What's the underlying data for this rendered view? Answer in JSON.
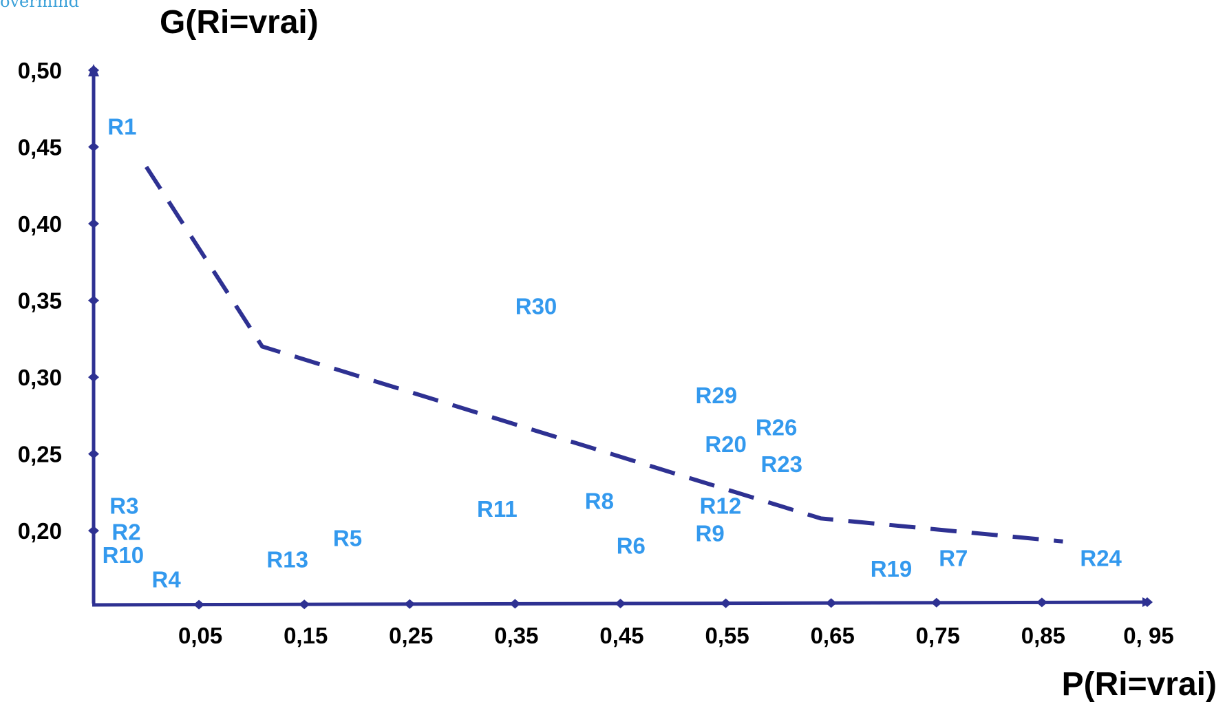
{
  "watermark": "overmind",
  "colors": {
    "axis": "#2e3192",
    "labels": "#3399ee",
    "frontier": "#2e3192"
  },
  "chart_data": {
    "type": "scatter",
    "title": "",
    "xlabel": "P(Ri=vrai)",
    "ylabel": "G(Ri=vrai)",
    "x_ticks": [
      "0,05",
      "0,15",
      "0,25",
      "0,35",
      "0,45",
      "0,55",
      "0,65",
      "0,75",
      "0,85",
      "0, 95"
    ],
    "x_tick_values": [
      0.05,
      0.15,
      0.25,
      0.35,
      0.45,
      0.55,
      0.65,
      0.75,
      0.85,
      0.95
    ],
    "y_ticks": [
      "0,50",
      "0,45",
      "0,40",
      "0,35",
      "0,30",
      "0,25",
      "0,20"
    ],
    "y_tick_values": [
      0.5,
      0.45,
      0.4,
      0.35,
      0.3,
      0.25,
      0.2
    ],
    "xlim": [
      -0.05,
      0.95
    ],
    "ylim": [
      0.153,
      0.5
    ],
    "points": [
      {
        "label": "R1",
        "x": -0.023,
        "y": 0.462
      },
      {
        "label": "R30",
        "x": 0.37,
        "y": 0.345
      },
      {
        "label": "R29",
        "x": 0.541,
        "y": 0.287
      },
      {
        "label": "R26",
        "x": 0.598,
        "y": 0.266
      },
      {
        "label": "R20",
        "x": 0.55,
        "y": 0.255
      },
      {
        "label": "R23",
        "x": 0.603,
        "y": 0.242
      },
      {
        "label": "R3",
        "x": -0.021,
        "y": 0.215
      },
      {
        "label": "R2",
        "x": -0.019,
        "y": 0.198
      },
      {
        "label": "R10",
        "x": -0.022,
        "y": 0.183
      },
      {
        "label": "R4",
        "x": 0.019,
        "y": 0.167
      },
      {
        "label": "R13",
        "x": 0.134,
        "y": 0.18
      },
      {
        "label": "R5",
        "x": 0.191,
        "y": 0.194
      },
      {
        "label": "R11",
        "x": 0.333,
        "y": 0.213
      },
      {
        "label": "R8",
        "x": 0.43,
        "y": 0.218
      },
      {
        "label": "R6",
        "x": 0.46,
        "y": 0.189
      },
      {
        "label": "R12",
        "x": 0.545,
        "y": 0.215
      },
      {
        "label": "R9",
        "x": 0.535,
        "y": 0.197
      },
      {
        "label": "R19",
        "x": 0.707,
        "y": 0.174
      },
      {
        "label": "R7",
        "x": 0.766,
        "y": 0.181
      },
      {
        "label": "R24",
        "x": 0.906,
        "y": 0.181
      }
    ],
    "frontier": [
      {
        "x": 0.0,
        "y": 0.437
      },
      {
        "x": 0.11,
        "y": 0.32
      },
      {
        "x": 0.64,
        "y": 0.208
      },
      {
        "x": 0.87,
        "y": 0.193
      }
    ],
    "grid": false,
    "legend": "none"
  }
}
